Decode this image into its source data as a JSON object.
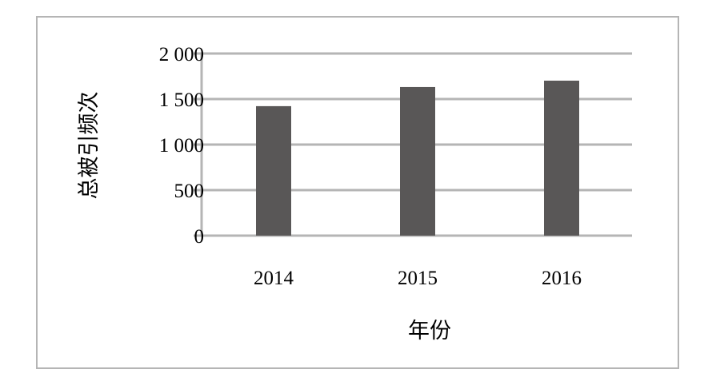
{
  "chart_data": {
    "type": "bar",
    "title": "",
    "xlabel": "年份",
    "ylabel": "总被引频次",
    "categories": [
      "2014",
      "2015",
      "2016"
    ],
    "values": [
      1422,
      1632,
      1702
    ],
    "ylim": [
      0,
      2000
    ],
    "yticks": [
      0,
      500,
      1000,
      1500,
      2000
    ],
    "ytick_labels": [
      "0",
      "500",
      "1 000",
      "1 500",
      "2 000"
    ],
    "grid": true,
    "legend": "none",
    "bar_color": "#595757",
    "grid_color": "#b5b5b5"
  }
}
